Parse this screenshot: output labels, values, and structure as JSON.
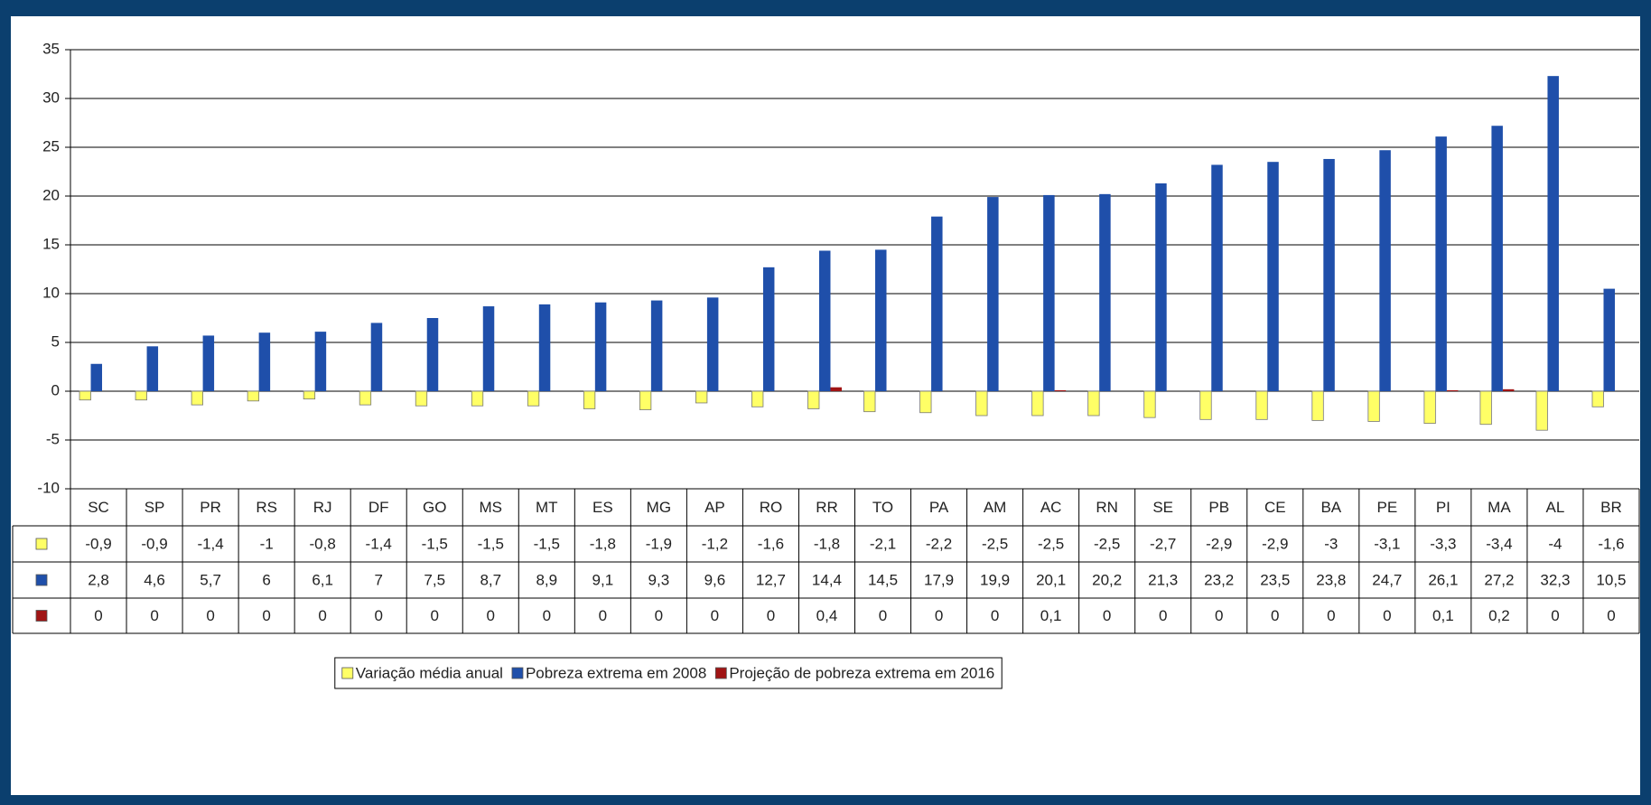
{
  "chart_data": {
    "type": "bar",
    "categories": [
      "SC",
      "SP",
      "PR",
      "RS",
      "RJ",
      "DF",
      "GO",
      "MS",
      "MT",
      "ES",
      "MG",
      "AP",
      "RO",
      "RR",
      "TO",
      "PA",
      "AM",
      "AC",
      "RN",
      "SE",
      "PB",
      "CE",
      "BA",
      "PE",
      "PI",
      "MA",
      "AL",
      "BR"
    ],
    "series": [
      {
        "name": "Variação média anual",
        "color": "#ffff66",
        "values": [
          -0.9,
          -0.9,
          -1.4,
          -1,
          -0.8,
          -1.4,
          -1.5,
          -1.5,
          -1.5,
          -1.8,
          -1.9,
          -1.2,
          -1.6,
          -1.8,
          -2.1,
          -2.2,
          -2.5,
          -2.5,
          -2.5,
          -2.7,
          -2.9,
          -2.9,
          -3,
          -3.1,
          -3.3,
          -3.4,
          -4,
          -1.6
        ],
        "value_labels": [
          "-0,9",
          "-0,9",
          "-1,4",
          "-1",
          "-0,8",
          "-1,4",
          "-1,5",
          "-1,5",
          "-1,5",
          "-1,8",
          "-1,9",
          "-1,2",
          "-1,6",
          "-1,8",
          "-2,1",
          "-2,2",
          "-2,5",
          "-2,5",
          "-2,5",
          "-2,7",
          "-2,9",
          "-2,9",
          "-3",
          "-3,1",
          "-3,3",
          "-3,4",
          "-4",
          "-1,6"
        ]
      },
      {
        "name": "Pobreza extrema em 2008",
        "color": "#1f4faa",
        "values": [
          2.8,
          4.6,
          5.7,
          6,
          6.1,
          7,
          7.5,
          8.7,
          8.9,
          9.1,
          9.3,
          9.6,
          12.7,
          14.4,
          14.5,
          17.9,
          19.9,
          20.1,
          20.2,
          21.3,
          23.2,
          23.5,
          23.8,
          24.7,
          26.1,
          27.2,
          32.3,
          10.5
        ],
        "value_labels": [
          "2,8",
          "4,6",
          "5,7",
          "6",
          "6,1",
          "7",
          "7,5",
          "8,7",
          "8,9",
          "9,1",
          "9,3",
          "9,6",
          "12,7",
          "14,4",
          "14,5",
          "17,9",
          "19,9",
          "20,1",
          "20,2",
          "21,3",
          "23,2",
          "23,5",
          "23,8",
          "24,7",
          "26,1",
          "27,2",
          "32,3",
          "10,5"
        ]
      },
      {
        "name": "Projeção de pobreza extrema em 2016",
        "color": "#a01414",
        "values": [
          0,
          0,
          0,
          0,
          0,
          0,
          0,
          0,
          0,
          0,
          0,
          0,
          0,
          0.4,
          0,
          0,
          0,
          0.1,
          0,
          0,
          0,
          0,
          0,
          0,
          0.1,
          0.2,
          0,
          0
        ],
        "value_labels": [
          "0",
          "0",
          "0",
          "0",
          "0",
          "0",
          "0",
          "0",
          "0",
          "0",
          "0",
          "0",
          "0",
          "0,4",
          "0",
          "0",
          "0",
          "0,1",
          "0",
          "0",
          "0",
          "0",
          "0",
          "0",
          "0,1",
          "0,2",
          "0",
          "0"
        ]
      }
    ],
    "ylim": [
      -10,
      35
    ],
    "yticks": [
      -10,
      -5,
      0,
      5,
      10,
      15,
      20,
      25,
      30,
      35
    ],
    "grid": true
  }
}
